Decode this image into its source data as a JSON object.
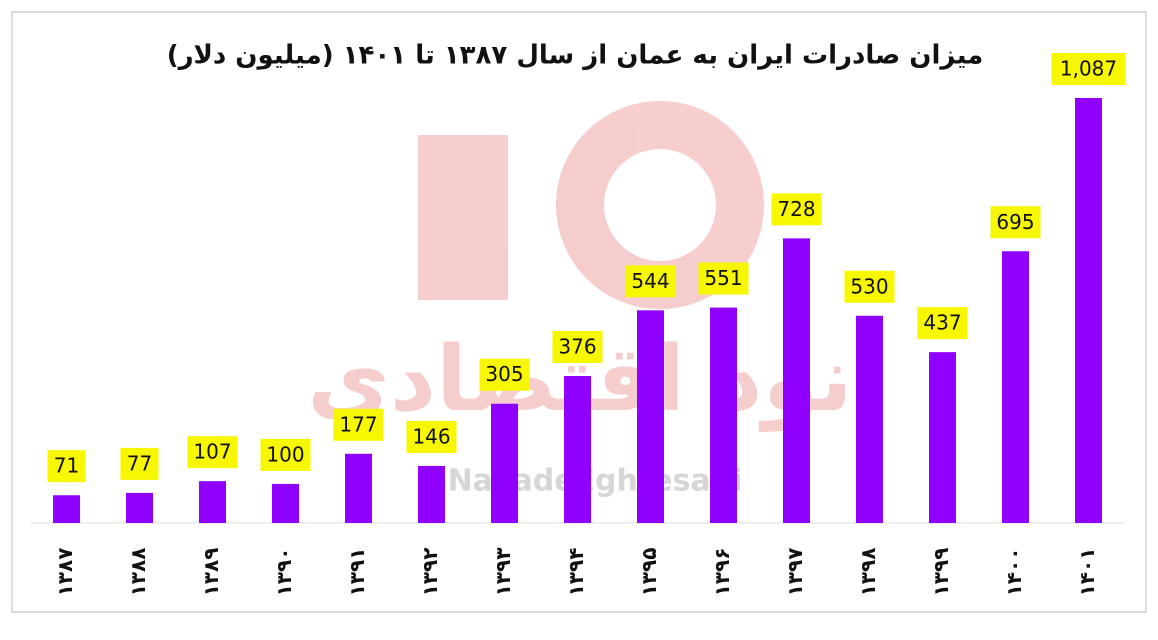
{
  "chart_data": {
    "type": "bar",
    "title": "میزان صادرات ایران به عمان از سال ۱۳۸۷ تا ۱۴۰۱ (میلیون دلار)",
    "categories": [
      "۱۳۸۷",
      "۱۳۸۸",
      "۱۳۸۹",
      "۱۳۹۰",
      "۱۳۹۱",
      "۱۳۹۲",
      "۱۳۹۳",
      "۱۳۹۴",
      "۱۳۹۵",
      "۱۳۹۶",
      "۱۳۹۷",
      "۱۳۹۸",
      "۱۳۹۹",
      "۱۴۰۰",
      "۱۴۰۱"
    ],
    "values": [
      71,
      77,
      107,
      100,
      177,
      146,
      305,
      376,
      544,
      551,
      728,
      530,
      437,
      695,
      1087
    ],
    "value_labels": [
      "71",
      "77",
      "107",
      "100",
      "177",
      "146",
      "305",
      "376",
      "544",
      "551",
      "728",
      "530",
      "437",
      "695",
      "1,087"
    ],
    "color": "#8f00ff",
    "label_background": "#f7f700",
    "watermark": "نود اقتصادی",
    "watermark_handle": "@NavadeEghtesadi"
  }
}
